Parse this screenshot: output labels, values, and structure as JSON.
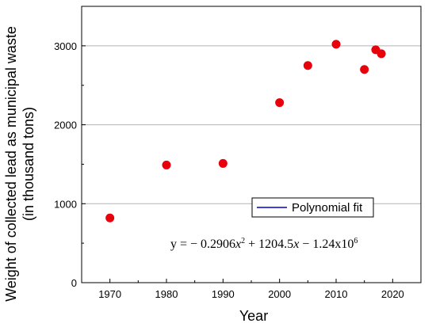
{
  "chart_data": {
    "type": "scatter",
    "xlabel": "Year",
    "ylabel": "Weight of collected lead as municipal waste",
    "ylabel_line2": "(in thousand tons)",
    "xlim": [
      1965,
      2025
    ],
    "ylim": [
      0,
      3500
    ],
    "x_ticks": [
      1970,
      1980,
      1990,
      2000,
      2010,
      2020
    ],
    "y_ticks": [
      0,
      1000,
      2000,
      3000
    ],
    "grid": "horizontal",
    "series": [
      {
        "color": "#e8000b",
        "x": [
          1970,
          1980,
          1990,
          2000,
          2005,
          2010,
          2015,
          2017,
          2018
        ],
        "y": [
          820,
          1490,
          1510,
          2280,
          2750,
          3020,
          2700,
          2950,
          2900
        ]
      },
      {
        "name": "Polynomial fit",
        "type": "line",
        "color": "#0000cc",
        "x_range": [
          1970,
          2018
        ],
        "coefficients": {
          "a": -0.2906,
          "b": 1204.5,
          "c": -1240000
        }
      }
    ],
    "legend": {
      "label": "Polynomial fit",
      "placement": "center-right"
    },
    "equation": {
      "prefix": "y = − 0.2906",
      "x1": "x",
      "sup1": "2",
      "mid": " + 1204.5",
      "x2": "x",
      "tail": " − 1.24x10",
      "sup2": "6"
    }
  }
}
